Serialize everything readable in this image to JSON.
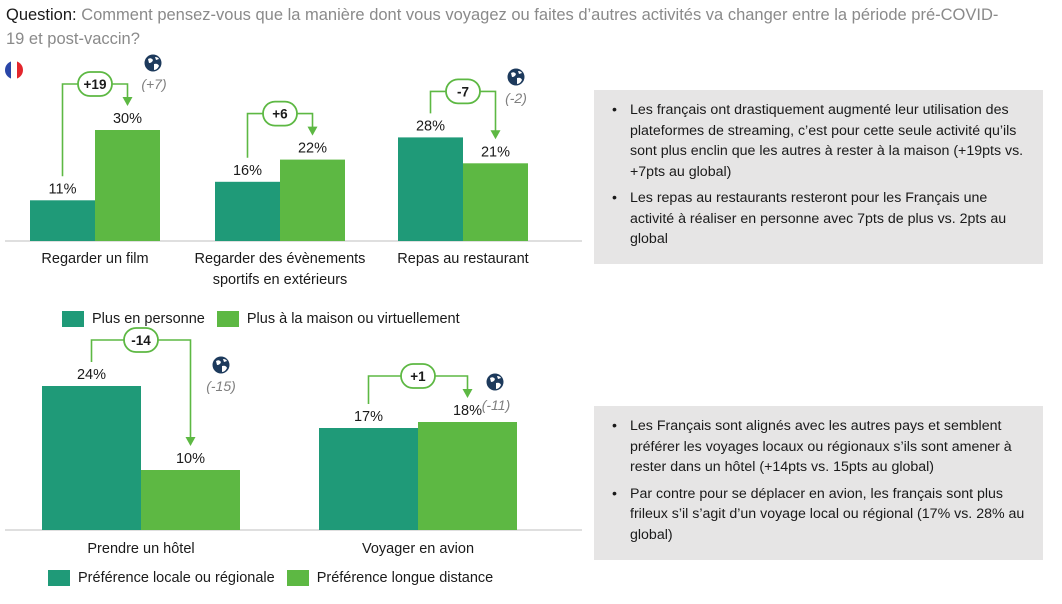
{
  "question": {
    "label": "Question:",
    "text": "Comment pensez-vous que la manière dont vous voyagez ou faites d’autres activités va changer entre la période pré-COVID-19 et post-vaccin?"
  },
  "colors": {
    "in_person": "#1f9a78",
    "at_home": "#5db843",
    "annotation": "#5db843",
    "note_bg": "#e6e5e5",
    "global_text": "#7f7f7f"
  },
  "legend_top": {
    "in_person": "Plus en personne",
    "at_home": "Plus à la maison ou virtuellement"
  },
  "legend_bottom": {
    "local": "Préférence locale ou régionale",
    "long": "Préférence longue distance"
  },
  "chart_data": [
    {
      "type": "bar",
      "categories": [
        "Regarder un film",
        "Regarder des évènements sportifs en extérieurs",
        "Repas au restaurant"
      ],
      "series": [
        {
          "name": "Plus en personne",
          "values": [
            11,
            16,
            28
          ]
        },
        {
          "name": "Plus à la maison ou virtuellement",
          "values": [
            30,
            22,
            21
          ]
        }
      ],
      "value_labels": [
        [
          "11%",
          "30%"
        ],
        [
          "16%",
          "22%"
        ],
        [
          "28%",
          "21%"
        ]
      ],
      "deltas": [
        "+19",
        "+6",
        "-7"
      ],
      "global_deltas": [
        "(+7)",
        "",
        "(-2)"
      ],
      "category_lines": [
        [
          "Regarder un film"
        ],
        [
          "Regarder des évènements",
          "sportifs en extérieurs"
        ],
        [
          "Repas au restaurant"
        ]
      ]
    },
    {
      "type": "bar",
      "categories": [
        "Prendre un hôtel",
        "Voyager en avion"
      ],
      "series": [
        {
          "name": "Préférence locale ou régionale",
          "values": [
            24,
            17
          ]
        },
        {
          "name": "Préférence longue distance",
          "values": [
            10,
            18
          ]
        }
      ],
      "value_labels": [
        [
          "24%",
          "10%"
        ],
        [
          "17%",
          "18%"
        ]
      ],
      "deltas": [
        "-14",
        "+1"
      ],
      "global_deltas": [
        "(-15)",
        "(-11)"
      ],
      "category_lines": [
        [
          "Prendre un hôtel"
        ],
        [
          "Voyager en avion"
        ]
      ]
    }
  ],
  "notes_top": [
    "Les français ont drastiquement augmenté leur utilisation des plateformes de streaming, c’est pour cette seule activité qu’ils sont plus enclin que les autres à rester à la maison (+19pts vs. +7pts au global)",
    "Les repas au restaurants resteront pour les Français une activité à réaliser en personne avec 7pts de plus vs. 2pts au global"
  ],
  "notes_bottom": [
    "Les Français sont alignés avec les autres pays et semblent préférer les voyages locaux ou régionaux s’ils sont amener à rester dans un hôtel (+14pts vs. 15pts au global)",
    "Par contre pour se déplacer en avion, les français sont plus frileux s’il s’agit d’un voyage local ou régional (17% vs. 28% au global)"
  ]
}
